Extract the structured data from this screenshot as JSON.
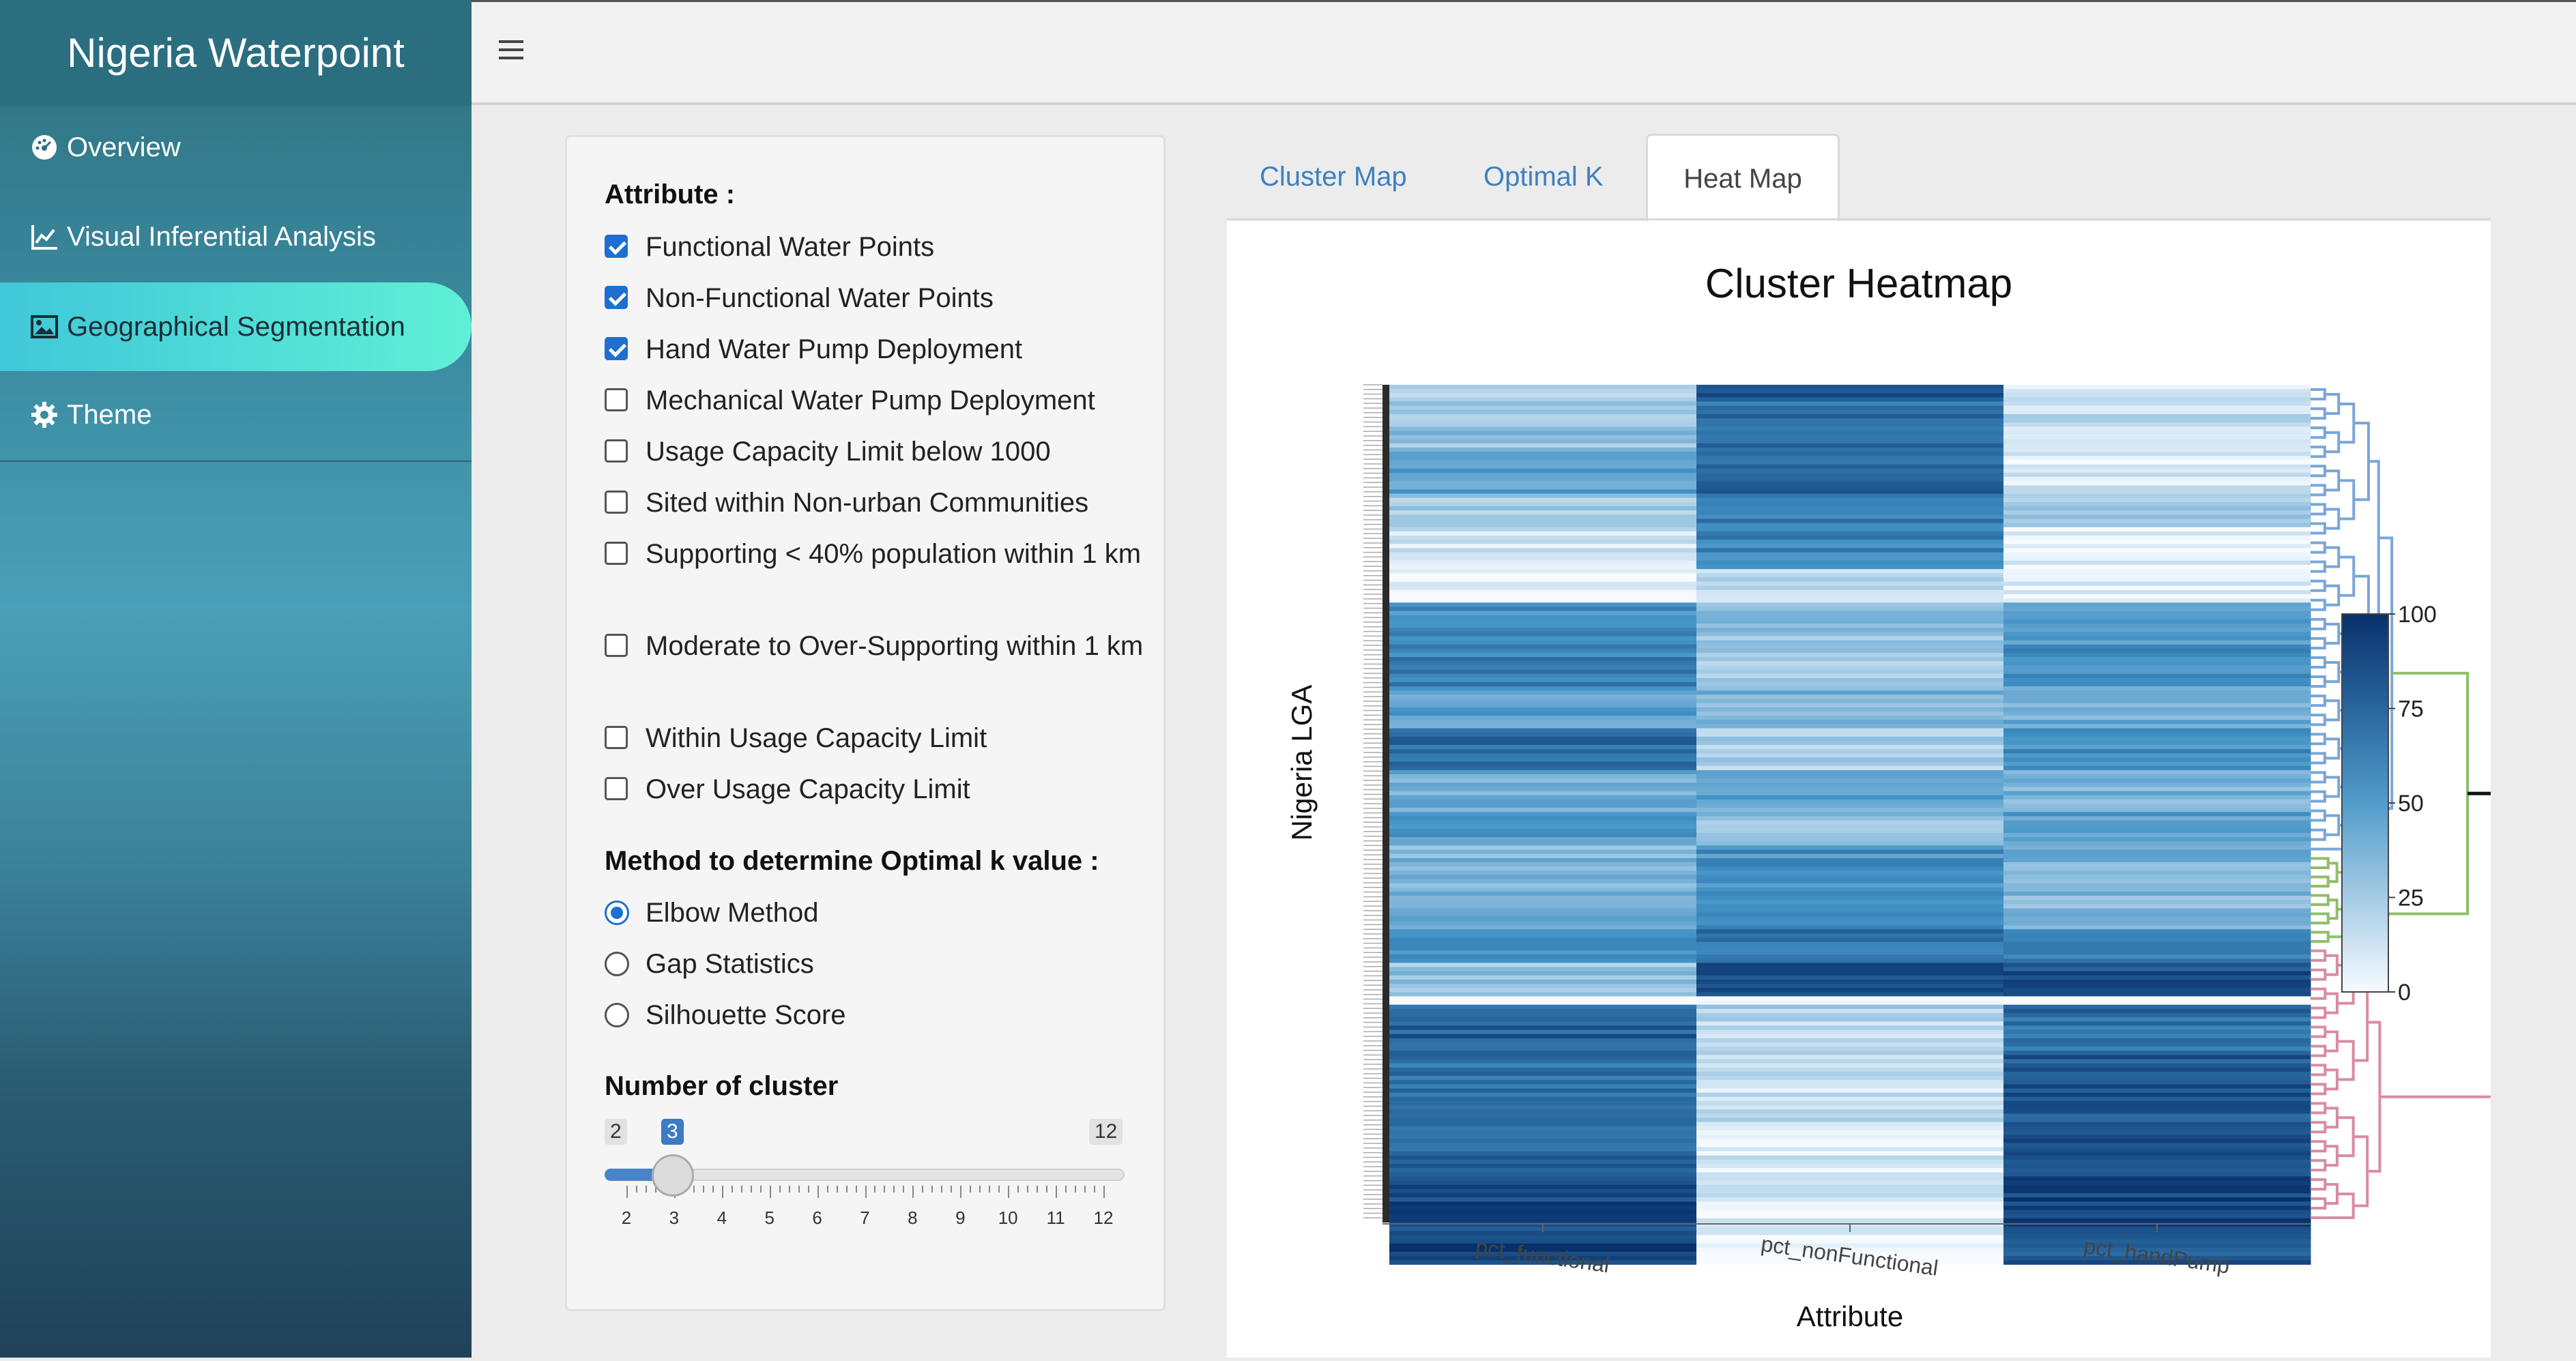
{
  "app": {
    "title": "Nigeria Waterpoint"
  },
  "sidebar": {
    "items": [
      {
        "label": "Overview",
        "icon": "dashboard-icon",
        "active": false
      },
      {
        "label": "Visual Inferential Analysis",
        "icon": "line-chart-icon",
        "active": false
      },
      {
        "label": "Geographical Segmentation",
        "icon": "image-icon",
        "active": true
      },
      {
        "label": "Theme",
        "icon": "gear-icon",
        "active": false
      }
    ]
  },
  "header": {
    "menu_icon": "hamburger-icon"
  },
  "controls": {
    "attribute_label": "Attribute :",
    "attributes": [
      {
        "label": "Functional Water Points",
        "checked": true
      },
      {
        "label": "Non-Functional Water Points",
        "checked": true
      },
      {
        "label": "Hand Water Pump Deployment",
        "checked": true
      },
      {
        "label": "Mechanical Water Pump Deployment",
        "checked": false
      },
      {
        "label": "Usage Capacity Limit below 1000",
        "checked": false
      },
      {
        "label": "Sited within Non-urban Communities",
        "checked": false
      },
      {
        "label": "Supporting < 40% population within 1 km",
        "checked": false
      },
      {
        "label": "Moderate to Over-Supporting within 1 km",
        "checked": false
      },
      {
        "label": "Within Usage Capacity Limit",
        "checked": false
      },
      {
        "label": "Over Usage Capacity Limit",
        "checked": false
      }
    ],
    "method_label": "Method to determine Optimal k value :",
    "methods": [
      {
        "label": "Elbow Method",
        "selected": true
      },
      {
        "label": "Gap Statistics",
        "selected": false
      },
      {
        "label": "Silhouette Score",
        "selected": false
      }
    ],
    "cluster_label": "Number of cluster",
    "slider": {
      "min": "2",
      "max": "12",
      "value": "3",
      "ticks": [
        "2",
        "3",
        "4",
        "5",
        "6",
        "7",
        "8",
        "9",
        "10",
        "11",
        "12"
      ]
    }
  },
  "tabs": [
    {
      "label": "Cluster Map",
      "active": false
    },
    {
      "label": "Optimal K",
      "active": false
    },
    {
      "label": "Heat Map",
      "active": true
    }
  ],
  "chart_data": {
    "type": "heatmap",
    "title": "Cluster Heatmap",
    "xlabel": "Attribute",
    "ylabel": "Nigeria LGA",
    "columns": [
      "pct_functional",
      "pct_nonFunctional",
      "pct_handPump"
    ],
    "colorscale": {
      "low": "#f7fbff",
      "high": "#08306b",
      "min": 0,
      "max": 100
    },
    "colorbar_ticks": [
      "0",
      "25",
      "50",
      "75",
      "100"
    ],
    "dendrogram_clusters": [
      {
        "color": "#7aa6d8",
        "share": 0.56
      },
      {
        "color": "#8fbf6a",
        "share": 0.11
      },
      {
        "color": "#d98ca0",
        "share": 0.33
      }
    ],
    "row_bands": [
      {
        "share": 0.02,
        "values": [
          25,
          82,
          12
        ]
      },
      {
        "share": 0.06,
        "values": [
          30,
          70,
          15
        ]
      },
      {
        "share": 0.05,
        "values": [
          45,
          75,
          10
        ]
      },
      {
        "share": 0.04,
        "values": [
          28,
          65,
          22
        ]
      },
      {
        "share": 0.05,
        "values": [
          12,
          62,
          8
        ]
      },
      {
        "share": 0.04,
        "values": [
          5,
          20,
          5
        ]
      },
      {
        "share": 0.05,
        "values": [
          55,
          30,
          45
        ]
      },
      {
        "share": 0.05,
        "values": [
          62,
          25,
          60
        ]
      },
      {
        "share": 0.05,
        "values": [
          48,
          38,
          42
        ]
      },
      {
        "share": 0.05,
        "values": [
          72,
          22,
          55
        ]
      },
      {
        "share": 0.05,
        "values": [
          40,
          45,
          38
        ]
      },
      {
        "share": 0.04,
        "values": [
          55,
          30,
          50
        ]
      },
      {
        "share": 0.05,
        "values": [
          35,
          55,
          40
        ]
      },
      {
        "share": 0.05,
        "values": [
          45,
          60,
          35
        ]
      },
      {
        "share": 0.04,
        "values": [
          55,
          70,
          68
        ]
      },
      {
        "share": 0.04,
        "values": [
          30,
          85,
          85
        ]
      },
      {
        "share": 0.01,
        "values": [
          2,
          2,
          2
        ]
      },
      {
        "share": 0.06,
        "values": [
          78,
          20,
          72
        ]
      },
      {
        "share": 0.08,
        "values": [
          68,
          15,
          82
        ]
      },
      {
        "share": 0.07,
        "values": [
          75,
          10,
          88
        ]
      },
      {
        "share": 0.06,
        "values": [
          88,
          8,
          92
        ]
      },
      {
        "share": 0.04,
        "values": [
          95,
          5,
          80
        ]
      }
    ]
  }
}
